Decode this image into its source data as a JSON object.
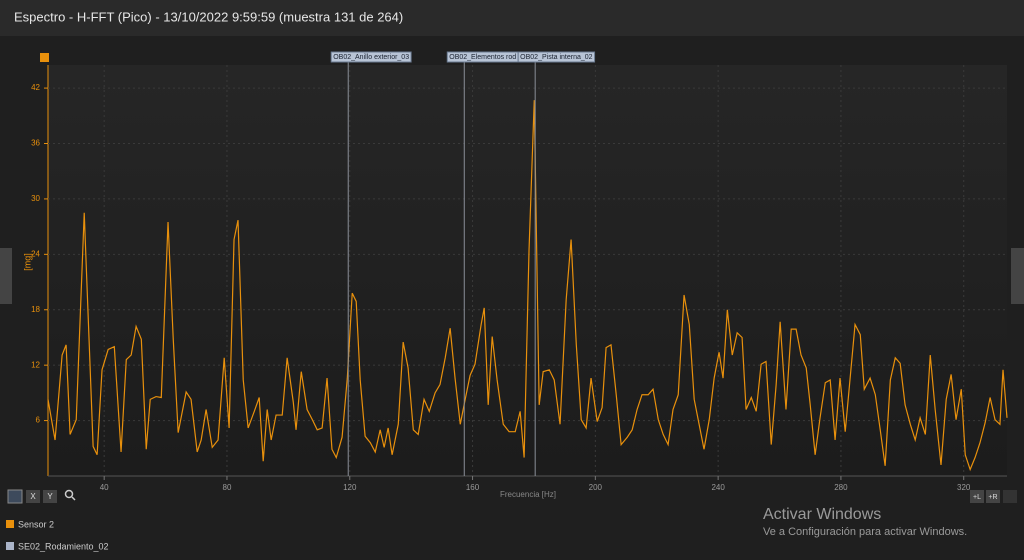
{
  "chart_data": {
    "type": "line",
    "title": "Espectro - H-FFT (Pico) - 13/10/2022 9:59:59 (muestra 131 de 264)",
    "y_label": "[mg]",
    "x_label": "Frecuencia [Hz]",
    "xlim": [
      21.7,
      334.1
    ],
    "ylim": [
      0,
      44.5
    ],
    "xticks": [
      40,
      80,
      120,
      160,
      200,
      240,
      280,
      320
    ],
    "yticks": [
      6,
      12,
      18,
      24,
      30,
      36,
      42
    ],
    "grid": true,
    "x": [
      21.7,
      24,
      26.3,
      27.6,
      28.9,
      30.9,
      33.5,
      36.4,
      37.7,
      39.3,
      41.3,
      43.3,
      45.5,
      47.2,
      48.8,
      50.4,
      52.1,
      53.7,
      55,
      56.9,
      58.6,
      60.8,
      62.5,
      64.1,
      66.7,
      68.3,
      70.3,
      71.6,
      73.2,
      75.2,
      77.1,
      79.1,
      80.7,
      82.3,
      83.6,
      85.3,
      86.9,
      88.9,
      90.5,
      91.8,
      93.1,
      94.4,
      96,
      98,
      99.6,
      101.6,
      102.5,
      104.2,
      106.1,
      107.8,
      109.4,
      111,
      112.6,
      114.2,
      115.6,
      117.5,
      119.2,
      120.8,
      122.1,
      123.4,
      125,
      126.7,
      128.3,
      129.9,
      131.2,
      132.5,
      133.8,
      135.8,
      137.4,
      139,
      140.7,
      142.3,
      144.2,
      145.9,
      147.8,
      149.4,
      151.1,
      152.7,
      154.3,
      156,
      157.6,
      159.2,
      160.8,
      162.8,
      163.8,
      165.1,
      166.4,
      168,
      170,
      171.9,
      173.9,
      175.5,
      176.8,
      178.4,
      180.1,
      181.7,
      183,
      185,
      186.6,
      188.5,
      190.5,
      192.1,
      193.8,
      195.4,
      197,
      198.6,
      200.6,
      202.2,
      203.5,
      205.1,
      206.8,
      208.4,
      210.4,
      212,
      213.6,
      215.2,
      217.2,
      218.8,
      220.5,
      222.1,
      223.7,
      225.3,
      227,
      228.9,
      230.6,
      232.2,
      233.8,
      235.4,
      237.1,
      238.7,
      240.3,
      241.6,
      243,
      244.6,
      246.2,
      247.8,
      249.1,
      250.8,
      252.4,
      254,
      255.6,
      257.3,
      258.9,
      260.2,
      262.1,
      263.8,
      265.4,
      267,
      268.7,
      270,
      271.6,
      273.2,
      274.9,
      276.5,
      278.1,
      279.7,
      281.4,
      283,
      284.6,
      286.3,
      287.6,
      289.5,
      291.2,
      292.8,
      294.4,
      296.1,
      297.7,
      299.3,
      300.9,
      302.6,
      304.2,
      305.8,
      307.5,
      309.1,
      310.7,
      312.6,
      314.3,
      315.9,
      317.5,
      319.2,
      320.5,
      322.1,
      323.7,
      325.3,
      327,
      328.6,
      330.2,
      331.8,
      332.8,
      334.1
    ],
    "series": [
      {
        "name": "Sensor 2",
        "color": "#e8900c",
        "values": [
          8.3,
          3.9,
          13.1,
          14.2,
          4.5,
          6.1,
          28.5,
          3.2,
          2.3,
          11.5,
          13.7,
          14,
          2.6,
          12.6,
          13.1,
          16.2,
          14.8,
          2.9,
          8.3,
          8.6,
          8.5,
          27.5,
          14.8,
          4.7,
          9.1,
          8.3,
          2.6,
          3.9,
          7.2,
          3.1,
          3.9,
          12.8,
          5.2,
          25.6,
          27.7,
          10.4,
          5.2,
          7,
          8.5,
          1.6,
          7.2,
          3.9,
          6.6,
          6.6,
          12.8,
          8,
          5,
          11.3,
          7.2,
          6.1,
          5,
          5.2,
          10.6,
          2.9,
          2,
          4.2,
          10.6,
          19.8,
          18.9,
          10.4,
          4.3,
          3.6,
          2.6,
          5,
          3.1,
          5.2,
          2.3,
          5.6,
          14.5,
          11.7,
          5,
          4.5,
          8.3,
          7,
          9,
          9.9,
          12.8,
          16,
          10.6,
          5.6,
          8.3,
          10.9,
          12.1,
          16.4,
          18.2,
          7.7,
          15.1,
          10.4,
          5.6,
          4.8,
          4.8,
          7,
          2,
          24.5,
          40.7,
          7.7,
          11.3,
          11.5,
          10.4,
          5.6,
          19.1,
          25.6,
          14.2,
          6.1,
          5.2,
          10.6,
          5.9,
          7.4,
          13.9,
          14.2,
          8.8,
          3.4,
          4.2,
          5,
          7.2,
          8.8,
          8.8,
          9.4,
          6.1,
          4.5,
          3.4,
          7.2,
          8.8,
          19.6,
          16.4,
          8.3,
          5.6,
          2.9,
          6.1,
          10.6,
          13.4,
          10.6,
          18,
          13.1,
          15.5,
          15,
          7.2,
          8.5,
          7,
          12.1,
          12.4,
          3.4,
          9.9,
          16.7,
          7.2,
          15.9,
          15.9,
          13.1,
          11.7,
          7.7,
          2.3,
          6.3,
          10.1,
          10.4,
          3.9,
          10.6,
          4.8,
          10.6,
          16.4,
          15.3,
          9.4,
          10.6,
          8.8,
          5,
          1.1,
          10.4,
          12.8,
          12.2,
          7.7,
          5.6,
          3.9,
          6.3,
          4.5,
          13.1,
          7.2,
          1.2,
          8.3,
          11,
          6.1,
          9.4,
          2.3,
          0.7,
          2,
          3.6,
          5.8,
          8.5,
          6.1,
          5.6,
          11.5,
          6.3
        ]
      }
    ],
    "markers": [
      {
        "label": "OB02_Anillo exterior_03",
        "x": 119.5
      },
      {
        "label": "OB02_Elementos rod",
        "x": 157.3
      },
      {
        "label": "OB02_Pista interna_02",
        "x": 180.4
      }
    ]
  },
  "ui": {
    "buttons": [
      "X",
      "Y",
      "+L",
      "+R"
    ],
    "tree_item": "SE02_Rodamiento_02",
    "watermark_title": "Activar Windows",
    "watermark_text": "Ve a Configuración para activar Windows."
  }
}
